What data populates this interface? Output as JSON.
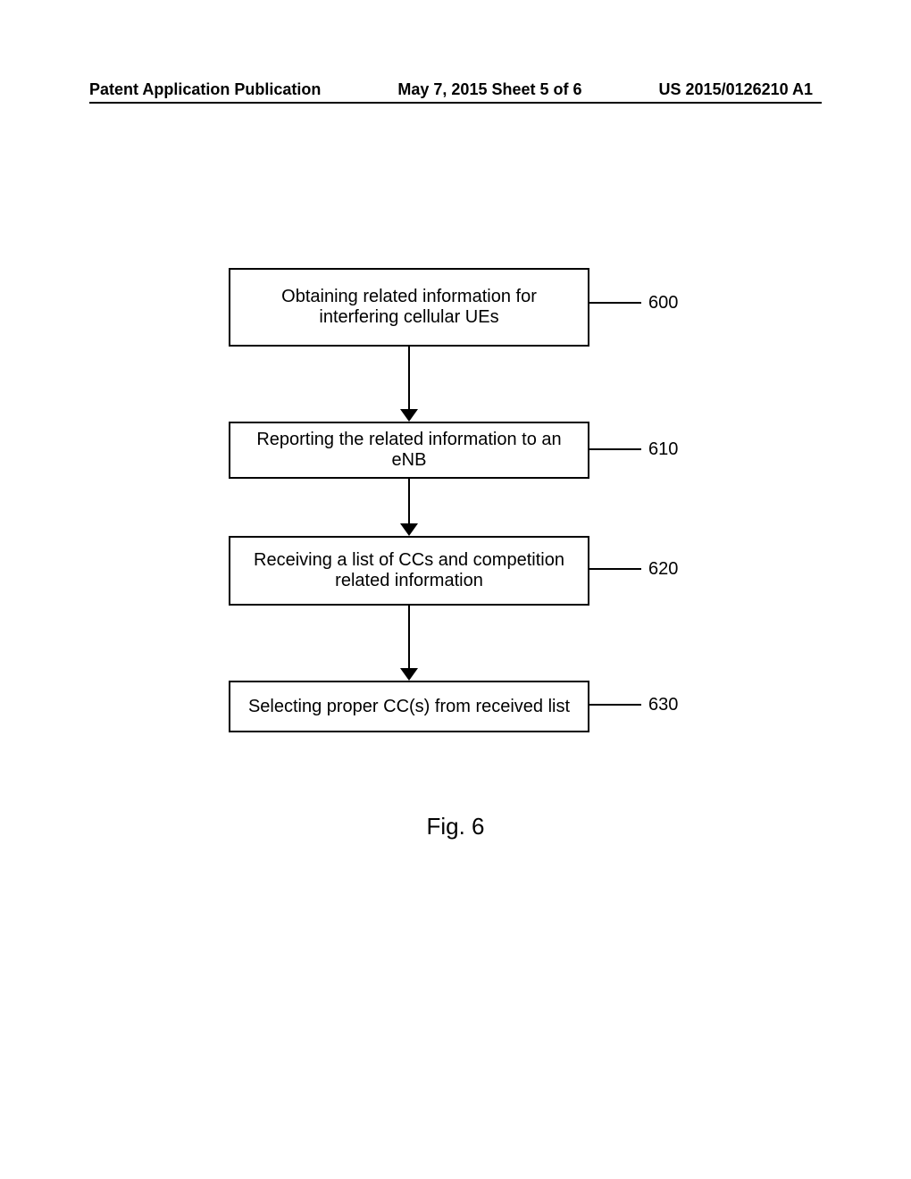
{
  "header": {
    "left": "Patent Application Publication",
    "center": "May 7, 2015   Sheet 5 of 6",
    "right": "US 2015/0126210 A1"
  },
  "flowchart": {
    "type": "flowchart",
    "background_color": "#ffffff",
    "border_color": "#000000",
    "text_color": "#000000",
    "font_size_pt": 15,
    "node_border_width": 2,
    "nodes": [
      {
        "id": "600",
        "label": "Obtaining related information for interfering cellular UEs",
        "ref": "600"
      },
      {
        "id": "610",
        "label": "Reporting the related information to an eNB",
        "ref": "610"
      },
      {
        "id": "620",
        "label": "Receiving a list of CCs and competition related information",
        "ref": "620"
      },
      {
        "id": "630",
        "label": "Selecting proper CC(s) from received list",
        "ref": "630"
      }
    ],
    "edges": [
      {
        "from": "600",
        "to": "610"
      },
      {
        "from": "610",
        "to": "620"
      },
      {
        "from": "620",
        "to": "630"
      }
    ]
  },
  "figure_label": "Fig. 6"
}
